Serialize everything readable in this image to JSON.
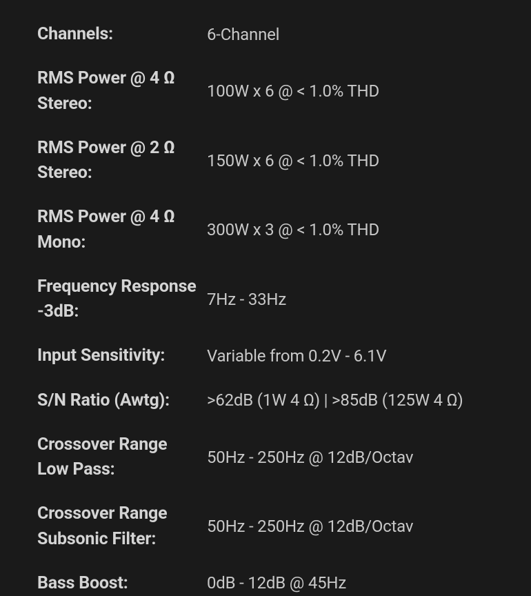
{
  "specs": {
    "rows": [
      {
        "label": "Channels:",
        "value": "6-Channel"
      },
      {
        "label": "RMS Power @ 4 Ω Stereo:",
        "value": "100W x 6 @ < 1.0% THD"
      },
      {
        "label": "RMS Power @ 2 Ω Stereo:",
        "value": "150W x 6 @ < 1.0% THD"
      },
      {
        "label": "RMS Power @ 4 Ω Mono:",
        "value": "300W x 3 @ < 1.0% THD"
      },
      {
        "label": "Frequency Response -3dB:",
        "value": "7Hz - 33Hz"
      },
      {
        "label": "Input Sensitivity:",
        "value": "Variable from 0.2V - 6.1V"
      },
      {
        "label": "S/N Ratio (Awtg):",
        "value": ">62dB (1W 4 Ω) | >85dB (125W 4 Ω)"
      },
      {
        "label": "Crossover Range Low Pass:",
        "value": "50Hz - 250Hz @ 12dB/Octav"
      },
      {
        "label": "Crossover Range Subsonic Filter:",
        "value": "50Hz - 250Hz @ 12dB/Octav"
      },
      {
        "label": "Bass Boost:",
        "value": "0dB - 12dB @ 45Hz"
      }
    ]
  },
  "colors": {
    "background": "#1a1a1a",
    "label_text": "#d4d4d4",
    "value_text": "#c8c8c8"
  },
  "typography": {
    "label_fontsize": 25,
    "label_fontweight": 700,
    "value_fontsize": 24,
    "value_fontweight": 400
  }
}
